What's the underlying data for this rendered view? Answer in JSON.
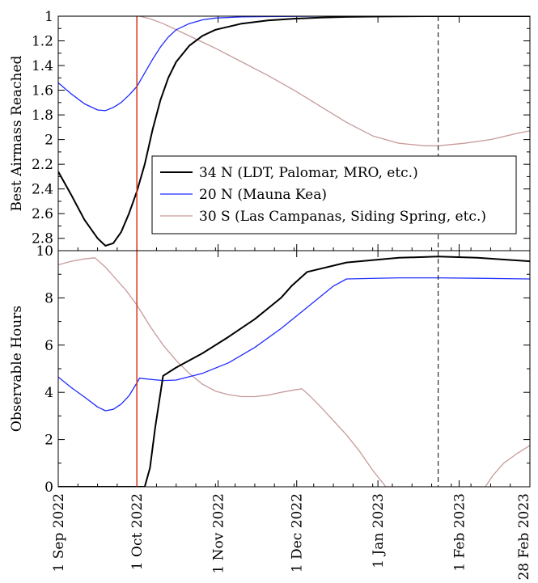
{
  "chart_data": [
    {
      "type": "line",
      "title": "",
      "xlabel": "",
      "ylabel": "Best Airmass Reached",
      "y_inverted": true,
      "ylim": [
        1,
        2.9
      ],
      "yticks": [
        "1",
        "1.2",
        "1.4",
        "1.6",
        "1.8",
        "2",
        "2.2",
        "2.4",
        "2.6",
        "2.8"
      ],
      "x_unit": "days since 1 Sep 2022",
      "xlim": [
        0,
        180
      ],
      "vertical_markers": [
        {
          "x": 30,
          "style": "solid",
          "color": "#d9381e"
        },
        {
          "x": 145,
          "style": "dashed",
          "color": "#000000"
        }
      ],
      "legend_position": "lower-right",
      "series": [
        {
          "name": "34 N (LDT, Palomar, MRO, etc.)",
          "color": "#000000",
          "points": [
            [
              0,
              2.26
            ],
            [
              5,
              2.45
            ],
            [
              10,
              2.65
            ],
            [
              15,
              2.8
            ],
            [
              18,
              2.86
            ],
            [
              21,
              2.84
            ],
            [
              24,
              2.75
            ],
            [
              27,
              2.6
            ],
            [
              30,
              2.42
            ],
            [
              33,
              2.2
            ],
            [
              36,
              1.92
            ],
            [
              39,
              1.68
            ],
            [
              42,
              1.5
            ],
            [
              45,
              1.37
            ],
            [
              50,
              1.24
            ],
            [
              55,
              1.16
            ],
            [
              60,
              1.11
            ],
            [
              70,
              1.06
            ],
            [
              80,
              1.035
            ],
            [
              90,
              1.02
            ],
            [
              100,
              1.012
            ],
            [
              110,
              1.006
            ],
            [
              120,
              1.003
            ],
            [
              140,
              1.0
            ],
            [
              160,
              1.0
            ],
            [
              180,
              1.0
            ]
          ]
        },
        {
          "name": "20 N (Mauna Kea)",
          "color": "#1f2bff",
          "points": [
            [
              0,
              1.54
            ],
            [
              5,
              1.63
            ],
            [
              10,
              1.71
            ],
            [
              15,
              1.76
            ],
            [
              18,
              1.765
            ],
            [
              21,
              1.74
            ],
            [
              24,
              1.7
            ],
            [
              27,
              1.64
            ],
            [
              30,
              1.57
            ],
            [
              33,
              1.46
            ],
            [
              36,
              1.35
            ],
            [
              39,
              1.25
            ],
            [
              42,
              1.17
            ],
            [
              45,
              1.11
            ],
            [
              50,
              1.06
            ],
            [
              55,
              1.03
            ],
            [
              60,
              1.015
            ],
            [
              70,
              1.006
            ],
            [
              80,
              1.003
            ],
            [
              100,
              1.0
            ],
            [
              140,
              1.0
            ],
            [
              180,
              1.0
            ]
          ]
        },
        {
          "name": "30 S (Las Campanas, Siding Spring, etc.)",
          "color": "#c89a9a",
          "points": [
            [
              0,
              1.0
            ],
            [
              28,
              1.0
            ],
            [
              31,
              1.0
            ],
            [
              35,
              1.02
            ],
            [
              40,
              1.06
            ],
            [
              50,
              1.16
            ],
            [
              60,
              1.26
            ],
            [
              70,
              1.37
            ],
            [
              80,
              1.48
            ],
            [
              90,
              1.6
            ],
            [
              100,
              1.73
            ],
            [
              110,
              1.86
            ],
            [
              120,
              1.97
            ],
            [
              130,
              2.03
            ],
            [
              140,
              2.05
            ],
            [
              145,
              2.05
            ],
            [
              155,
              2.03
            ],
            [
              165,
              2.0
            ],
            [
              175,
              1.95
            ],
            [
              180,
              1.93
            ]
          ]
        }
      ]
    },
    {
      "type": "line",
      "title": "",
      "xlabel": "",
      "ylabel": "Observable Hours",
      "ylim": [
        0,
        10
      ],
      "yticks": [
        "0",
        "2",
        "4",
        "6",
        "8",
        "10"
      ],
      "xlim": [
        0,
        180
      ],
      "xtick_labels": [
        {
          "x": 0,
          "label": "1 Sep 2022"
        },
        {
          "x": 30,
          "label": "1 Oct 2022"
        },
        {
          "x": 61,
          "label": "1 Nov 2022"
        },
        {
          "x": 91,
          "label": "1 Dec 2022"
        },
        {
          "x": 122,
          "label": "1 Jan 2023"
        },
        {
          "x": 153,
          "label": "1 Feb 2023"
        },
        {
          "x": 180,
          "label": "28 Feb 2023"
        }
      ],
      "vertical_markers": [
        {
          "x": 30,
          "style": "solid",
          "color": "#d9381e"
        },
        {
          "x": 145,
          "style": "dashed",
          "color": "#000000"
        }
      ],
      "series": [
        {
          "name": "34 N (LDT, Palomar, MRO, etc.)",
          "color": "#000000",
          "points": [
            [
              0,
              0
            ],
            [
              33,
              0
            ],
            [
              35,
              0.8
            ],
            [
              37,
              2.5
            ],
            [
              40,
              4.7
            ],
            [
              45,
              5.05
            ],
            [
              55,
              5.65
            ],
            [
              65,
              6.35
            ],
            [
              75,
              7.1
            ],
            [
              85,
              8.0
            ],
            [
              89,
              8.5
            ],
            [
              95,
              9.1
            ],
            [
              110,
              9.5
            ],
            [
              130,
              9.7
            ],
            [
              145,
              9.75
            ],
            [
              160,
              9.7
            ],
            [
              180,
              9.55
            ]
          ]
        },
        {
          "name": "20 N (Mauna Kea)",
          "color": "#1f2bff",
          "points": [
            [
              0,
              4.65
            ],
            [
              5,
              4.2
            ],
            [
              10,
              3.8
            ],
            [
              15,
              3.38
            ],
            [
              18,
              3.22
            ],
            [
              21,
              3.28
            ],
            [
              24,
              3.5
            ],
            [
              27,
              3.85
            ],
            [
              30,
              4.4
            ],
            [
              31,
              4.6
            ],
            [
              35,
              4.55
            ],
            [
              40,
              4.5
            ],
            [
              45,
              4.52
            ],
            [
              55,
              4.8
            ],
            [
              65,
              5.25
            ],
            [
              75,
              5.9
            ],
            [
              85,
              6.7
            ],
            [
              95,
              7.6
            ],
            [
              105,
              8.5
            ],
            [
              110,
              8.8
            ],
            [
              130,
              8.85
            ],
            [
              145,
              8.85
            ],
            [
              160,
              8.83
            ],
            [
              180,
              8.8
            ]
          ]
        },
        {
          "name": "30 S (Las Campanas, Siding Spring, etc.)",
          "color": "#c89a9a",
          "points": [
            [
              0,
              9.4
            ],
            [
              5,
              9.55
            ],
            [
              10,
              9.65
            ],
            [
              14,
              9.7
            ],
            [
              18,
              9.3
            ],
            [
              22,
              8.8
            ],
            [
              26,
              8.3
            ],
            [
              30,
              7.7
            ],
            [
              35,
              6.8
            ],
            [
              40,
              6.0
            ],
            [
              45,
              5.35
            ],
            [
              50,
              4.8
            ],
            [
              55,
              4.35
            ],
            [
              60,
              4.05
            ],
            [
              65,
              3.9
            ],
            [
              70,
              3.82
            ],
            [
              75,
              3.82
            ],
            [
              80,
              3.88
            ],
            [
              85,
              4.0
            ],
            [
              90,
              4.1
            ],
            [
              93,
              4.15
            ],
            [
              96,
              3.85
            ],
            [
              100,
              3.4
            ],
            [
              105,
              2.8
            ],
            [
              110,
              2.2
            ],
            [
              115,
              1.5
            ],
            [
              120,
              0.7
            ],
            [
              125,
              0
            ],
            [
              150,
              0
            ],
            [
              163,
              0
            ],
            [
              166,
              0.5
            ],
            [
              170,
              1.0
            ],
            [
              175,
              1.4
            ],
            [
              180,
              1.75
            ]
          ]
        }
      ]
    }
  ]
}
